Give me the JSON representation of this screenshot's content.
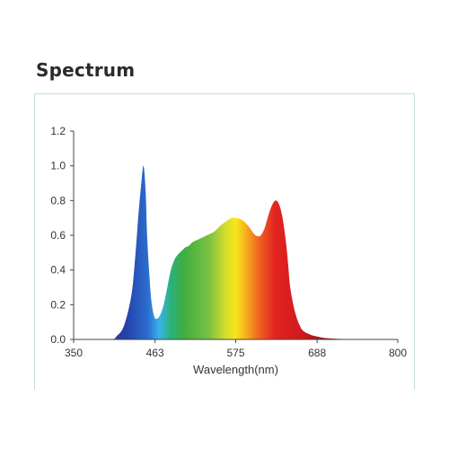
{
  "title": "Spectrum",
  "colors": {
    "panel_border": "#bfe3cf",
    "axis": "#444444",
    "text": "#333333"
  },
  "chart_data": {
    "type": "area",
    "title": "",
    "xlabel": "Wavelength(nm)",
    "ylabel": "",
    "xlim": [
      350,
      800
    ],
    "ylim": [
      0,
      1.2
    ],
    "x_ticks": [
      350,
      463,
      575,
      688,
      800
    ],
    "x_tick_labels": [
      "350",
      "463",
      "575",
      "688",
      "800"
    ],
    "y_ticks": [
      0.0,
      0.2,
      0.4,
      0.6,
      0.8,
      1.0,
      1.2
    ],
    "y_tick_labels": [
      "0.0",
      "0.2",
      "0.4",
      "0.6",
      "0.8",
      "1.0",
      "1.2"
    ],
    "grid": false,
    "fill": "visible-spectrum gradient",
    "series": [
      {
        "x": [
          350,
          400,
          410,
          420,
          430,
          435,
          440,
          444,
          447,
          450,
          452,
          455,
          458,
          462,
          466,
          470,
          475,
          480,
          485,
          490,
          495,
          500,
          505,
          510,
          515,
          520,
          525,
          530,
          535,
          540,
          545,
          550,
          555,
          560,
          565,
          570,
          575,
          580,
          585,
          590,
          595,
          600,
          605,
          610,
          615,
          620,
          625,
          630,
          635,
          640,
          645,
          648,
          650,
          653,
          656,
          660,
          665,
          670,
          680,
          690,
          700,
          720,
          740,
          760,
          780,
          800
        ],
        "y": [
          0.0,
          0.0,
          0.02,
          0.08,
          0.25,
          0.45,
          0.72,
          0.9,
          1.0,
          0.85,
          0.6,
          0.38,
          0.22,
          0.13,
          0.12,
          0.14,
          0.2,
          0.3,
          0.4,
          0.46,
          0.49,
          0.51,
          0.53,
          0.54,
          0.56,
          0.57,
          0.58,
          0.59,
          0.6,
          0.61,
          0.62,
          0.64,
          0.66,
          0.675,
          0.69,
          0.7,
          0.7,
          0.695,
          0.685,
          0.665,
          0.64,
          0.61,
          0.595,
          0.6,
          0.64,
          0.71,
          0.77,
          0.8,
          0.78,
          0.7,
          0.55,
          0.42,
          0.32,
          0.24,
          0.18,
          0.12,
          0.07,
          0.045,
          0.025,
          0.015,
          0.008,
          0.003,
          0.0,
          0.0,
          0.0,
          0.0
        ]
      }
    ]
  }
}
